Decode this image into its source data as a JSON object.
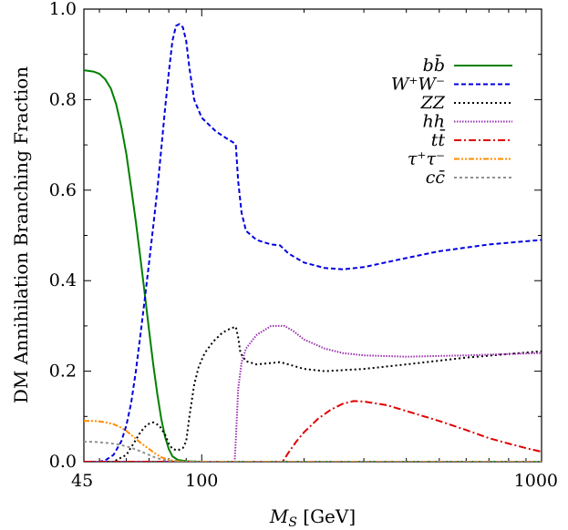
{
  "chart_data": {
    "type": "line",
    "title": "",
    "xlabel": "M_S [GeV]",
    "ylabel": "DM Annihilation Branching Fraction",
    "x_scale": "log",
    "xlim": [
      45,
      1000
    ],
    "ylim": [
      0,
      1
    ],
    "x_ticks": [
      45,
      100,
      1000
    ],
    "x_tick_labels": [
      "45",
      "100",
      "1000"
    ],
    "y_ticks": [
      0,
      0.2,
      0.4,
      0.6,
      0.8,
      1.0
    ],
    "y_tick_labels": [
      "0.0",
      "0.2",
      "0.4",
      "0.6",
      "0.8",
      "1.0"
    ],
    "grid": false,
    "legend_position": "top-right",
    "series": [
      {
        "name": "bb̄",
        "color": "#008000",
        "dash": "solid",
        "points": [
          [
            45,
            0.865
          ],
          [
            48,
            0.862
          ],
          [
            50,
            0.857
          ],
          [
            52,
            0.845
          ],
          [
            54,
            0.825
          ],
          [
            56,
            0.79
          ],
          [
            58,
            0.74
          ],
          [
            60,
            0.68
          ],
          [
            62,
            0.605
          ],
          [
            64,
            0.53
          ],
          [
            66,
            0.45
          ],
          [
            68,
            0.37
          ],
          [
            70,
            0.29
          ],
          [
            72,
            0.215
          ],
          [
            74,
            0.15
          ],
          [
            76,
            0.095
          ],
          [
            78,
            0.055
          ],
          [
            80,
            0.028
          ],
          [
            82,
            0.012
          ],
          [
            85,
            0.004
          ],
          [
            90,
            0.001
          ],
          [
            100,
            0.0
          ],
          [
            1000,
            0.0
          ]
        ]
      },
      {
        "name": "W⁺W⁻",
        "color": "#0000e0",
        "dash": "dashed",
        "points": [
          [
            45,
            0.0
          ],
          [
            50,
            0.0
          ],
          [
            52,
            0.003
          ],
          [
            55,
            0.015
          ],
          [
            58,
            0.045
          ],
          [
            60,
            0.08
          ],
          [
            62,
            0.13
          ],
          [
            64,
            0.2
          ],
          [
            66,
            0.28
          ],
          [
            68,
            0.36
          ],
          [
            70,
            0.44
          ],
          [
            72,
            0.52
          ],
          [
            74,
            0.6
          ],
          [
            76,
            0.69
          ],
          [
            78,
            0.78
          ],
          [
            80,
            0.86
          ],
          [
            82,
            0.93
          ],
          [
            84,
            0.963
          ],
          [
            86,
            0.967
          ],
          [
            88,
            0.96
          ],
          [
            90,
            0.93
          ],
          [
            92,
            0.87
          ],
          [
            95,
            0.8
          ],
          [
            100,
            0.76
          ],
          [
            110,
            0.73
          ],
          [
            118,
            0.715
          ],
          [
            124,
            0.705
          ],
          [
            126,
            0.7
          ],
          [
            128,
            0.62
          ],
          [
            131,
            0.55
          ],
          [
            135,
            0.51
          ],
          [
            145,
            0.49
          ],
          [
            160,
            0.48
          ],
          [
            170,
            0.478
          ],
          [
            180,
            0.46
          ],
          [
            200,
            0.44
          ],
          [
            230,
            0.428
          ],
          [
            260,
            0.425
          ],
          [
            300,
            0.43
          ],
          [
            400,
            0.45
          ],
          [
            500,
            0.465
          ],
          [
            700,
            0.48
          ],
          [
            1000,
            0.49
          ]
        ]
      },
      {
        "name": "ZZ",
        "color": "#000000",
        "dash": "dotted",
        "points": [
          [
            45,
            0.0
          ],
          [
            55,
            0.0
          ],
          [
            60,
            0.015
          ],
          [
            63,
            0.04
          ],
          [
            66,
            0.065
          ],
          [
            69,
            0.082
          ],
          [
            72,
            0.087
          ],
          [
            75,
            0.08
          ],
          [
            78,
            0.06
          ],
          [
            80,
            0.04
          ],
          [
            82,
            0.028
          ],
          [
            85,
            0.025
          ],
          [
            88,
            0.03
          ],
          [
            90,
            0.045
          ],
          [
            92,
            0.1
          ],
          [
            95,
            0.17
          ],
          [
            98,
            0.21
          ],
          [
            102,
            0.24
          ],
          [
            108,
            0.265
          ],
          [
            115,
            0.285
          ],
          [
            122,
            0.295
          ],
          [
            126,
            0.298
          ],
          [
            128,
            0.275
          ],
          [
            130,
            0.24
          ],
          [
            135,
            0.222
          ],
          [
            145,
            0.215
          ],
          [
            160,
            0.218
          ],
          [
            170,
            0.22
          ],
          [
            180,
            0.215
          ],
          [
            200,
            0.205
          ],
          [
            230,
            0.2
          ],
          [
            300,
            0.205
          ],
          [
            400,
            0.215
          ],
          [
            600,
            0.23
          ],
          [
            800,
            0.238
          ],
          [
            1000,
            0.244
          ]
        ]
      },
      {
        "name": "hh",
        "color": "#9b30b0",
        "dash": "dotted-fine",
        "points": [
          [
            45,
            0.0
          ],
          [
            125,
            0.0
          ],
          [
            126,
            0.05
          ],
          [
            128,
            0.16
          ],
          [
            131,
            0.22
          ],
          [
            135,
            0.25
          ],
          [
            145,
            0.28
          ],
          [
            160,
            0.3
          ],
          [
            175,
            0.3
          ],
          [
            185,
            0.29
          ],
          [
            200,
            0.27
          ],
          [
            230,
            0.25
          ],
          [
            260,
            0.24
          ],
          [
            300,
            0.235
          ],
          [
            400,
            0.232
          ],
          [
            600,
            0.235
          ],
          [
            800,
            0.238
          ],
          [
            1000,
            0.24
          ]
        ]
      },
      {
        "name": "tt̄",
        "color": "#e00000",
        "dash": "dash-dot",
        "points": [
          [
            45,
            0.0
          ],
          [
            173,
            0.0
          ],
          [
            180,
            0.02
          ],
          [
            190,
            0.045
          ],
          [
            200,
            0.065
          ],
          [
            220,
            0.095
          ],
          [
            240,
            0.115
          ],
          [
            260,
            0.128
          ],
          [
            280,
            0.134
          ],
          [
            300,
            0.133
          ],
          [
            350,
            0.125
          ],
          [
            400,
            0.112
          ],
          [
            500,
            0.09
          ],
          [
            600,
            0.07
          ],
          [
            700,
            0.052
          ],
          [
            800,
            0.04
          ],
          [
            900,
            0.03
          ],
          [
            1000,
            0.022
          ]
        ]
      },
      {
        "name": "τ⁺τ⁻",
        "color": "#ff8c00",
        "dash": "dash-dot-dot",
        "points": [
          [
            45,
            0.09
          ],
          [
            48,
            0.09
          ],
          [
            50,
            0.089
          ],
          [
            52,
            0.087
          ],
          [
            55,
            0.083
          ],
          [
            58,
            0.075
          ],
          [
            60,
            0.068
          ],
          [
            63,
            0.055
          ],
          [
            66,
            0.042
          ],
          [
            70,
            0.028
          ],
          [
            73,
            0.018
          ],
          [
            76,
            0.01
          ],
          [
            80,
            0.004
          ],
          [
            85,
            0.001
          ],
          [
            90,
            0.0
          ],
          [
            1000,
            0.0
          ]
        ]
      },
      {
        "name": "cc̄",
        "color": "#909090",
        "dash": "dotted-coarse",
        "points": [
          [
            45,
            0.044
          ],
          [
            48,
            0.044
          ],
          [
            52,
            0.042
          ],
          [
            56,
            0.039
          ],
          [
            60,
            0.034
          ],
          [
            64,
            0.027
          ],
          [
            68,
            0.019
          ],
          [
            72,
            0.011
          ],
          [
            76,
            0.005
          ],
          [
            80,
            0.002
          ],
          [
            85,
            0.0
          ],
          [
            1000,
            0.0
          ]
        ]
      }
    ]
  }
}
